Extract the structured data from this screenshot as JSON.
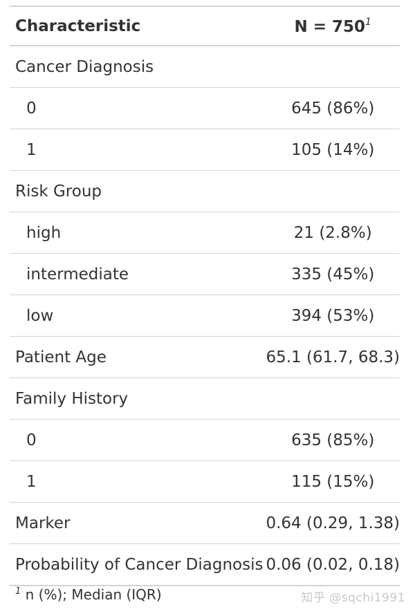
{
  "table": {
    "header": {
      "characteristic": "Characteristic",
      "n_label": "N = 750",
      "n_footnote_marker": "1"
    },
    "rows": [
      {
        "label": "Cancer Diagnosis",
        "value": "",
        "indent": false
      },
      {
        "label": "0",
        "value": "645 (86%)",
        "indent": true
      },
      {
        "label": "1",
        "value": "105 (14%)",
        "indent": true
      },
      {
        "label": "Risk Group",
        "value": "",
        "indent": false
      },
      {
        "label": "high",
        "value": "21 (2.8%)",
        "indent": true
      },
      {
        "label": "intermediate",
        "value": "335 (45%)",
        "indent": true
      },
      {
        "label": "low",
        "value": "394 (53%)",
        "indent": true
      },
      {
        "label": "Patient Age",
        "value": "65.1 (61.7, 68.3)",
        "indent": false
      },
      {
        "label": "Family History",
        "value": "",
        "indent": false
      },
      {
        "label": "0",
        "value": "635 (85%)",
        "indent": true
      },
      {
        "label": "1",
        "value": "115 (15%)",
        "indent": true
      },
      {
        "label": "Marker",
        "value": "0.64 (0.29, 1.38)",
        "indent": false
      },
      {
        "label": "Probability of Cancer Diagnosis",
        "value": "0.06 (0.02, 0.18)",
        "indent": false
      }
    ]
  },
  "footnote": {
    "marker": "1",
    "text": "n (%); Median (IQR)"
  },
  "watermark": "知乎 @sqchi1991"
}
